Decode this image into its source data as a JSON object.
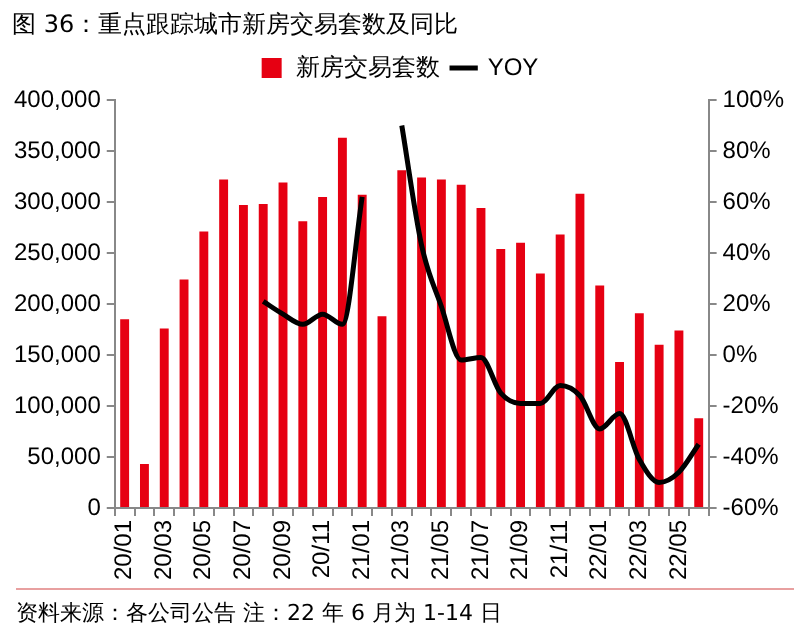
{
  "chart_data": {
    "type": "bar",
    "title": "图 36：重点跟踪城市新房交易套数及同比",
    "categories": [
      "20/01",
      null,
      "20/03",
      null,
      "20/05",
      null,
      "20/07",
      null,
      "20/09",
      null,
      "20/11",
      null,
      "21/01",
      null,
      "21/03",
      null,
      "21/05",
      null,
      "21/07",
      null,
      "21/09",
      null,
      "21/11",
      null,
      "22/01",
      null,
      "22/03",
      null,
      "22/05",
      null
    ],
    "series": [
      {
        "name": "新房交易套数",
        "color": "#e60012",
        "values": [
          185000,
          43000,
          176000,
          224000,
          271000,
          322000,
          297000,
          298000,
          319000,
          281000,
          305000,
          363000,
          307000,
          188000,
          331000,
          324000,
          322000,
          317000,
          294000,
          254000,
          260000,
          230000,
          268000,
          308000,
          218000,
          143000,
          191000,
          160000,
          174000,
          88000
        ]
      },
      {
        "name": "YOY",
        "type": "line",
        "axis": "y2",
        "color": "#000000",
        "values": [
          null,
          null,
          null,
          null,
          null,
          null,
          null,
          21,
          16,
          12,
          16,
          12,
          62,
          null,
          90,
          43,
          19,
          -2,
          -1,
          -15,
          -19,
          -19,
          -12,
          -16,
          -29,
          -23,
          -41,
          -50,
          -46,
          -35
        ]
      }
    ],
    "ylim": [
      0,
      400000
    ],
    "yticks": [
      0,
      {
        "value": 50000,
        "label": "50,000"
      },
      {
        "value": 100000,
        "label": "100,000"
      },
      {
        "value": 150000,
        "label": "150,000"
      },
      {
        "value": 200000,
        "label": "200,000"
      },
      {
        "value": 250000,
        "label": "250,000"
      },
      {
        "value": 300000,
        "label": "300,000"
      },
      {
        "value": 350000,
        "label": "350,000"
      },
      {
        "value": 400000,
        "label": "400,000"
      }
    ],
    "y2lim": [
      -60,
      100
    ],
    "y2ticks": [
      {
        "value": -60,
        "label": "-60%"
      },
      {
        "value": -40,
        "label": "-40%"
      },
      {
        "value": -20,
        "label": "-20%"
      },
      {
        "value": 0,
        "label": "0%"
      },
      {
        "value": 20,
        "label": "20%"
      },
      {
        "value": 40,
        "label": "40%"
      },
      {
        "value": 60,
        "label": "60%"
      },
      {
        "value": 80,
        "label": "80%"
      },
      {
        "value": 100,
        "label": "100%"
      }
    ],
    "grid": false,
    "legend": "top",
    "annotations": [
      "资料来源：各公司公告 注：22 年 6 月为 1-14 日"
    ]
  }
}
